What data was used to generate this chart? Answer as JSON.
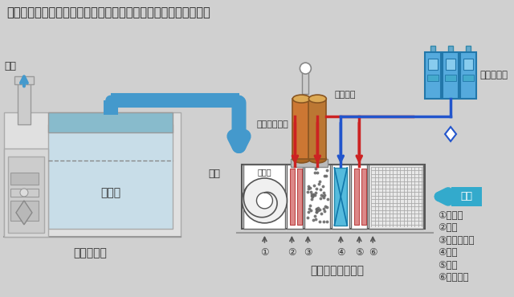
{
  "bg_color": "#d0d0d0",
  "title": "加熱・加湿にはボイラー等による蒸気他が用いられてきました。",
  "title_fontsize": 10.5,
  "title_color": "#222222",
  "label_booth": "塗装ブース",
  "label_booth_room": "塗装室",
  "label_air_conditioner": "空調機（外調機）",
  "label_exhaust": "排気",
  "label_supply": "給気",
  "label_outside_air": "外気",
  "label_steam_boiler": "蒸気ボイラー",
  "label_steam_pipe": "蒸気配管",
  "label_chiller": "冷水チラー",
  "label_fan": "送風機",
  "legend_items": [
    "①送風機",
    "②再熱",
    "③蒸気加湿器",
    "④冷却",
    "⑤予熱",
    "⑥フィルタ"
  ],
  "numbered_labels": [
    "①",
    "②",
    "③",
    "④",
    "⑤",
    "⑥"
  ],
  "red_color": "#cc2222",
  "blue_color": "#2255cc",
  "light_blue": "#4499cc",
  "light_blue2": "#88bbdd",
  "light_blue3": "#aaccdd",
  "cyan_color": "#44aacc",
  "orange_color": "#cc7733",
  "gray_color": "#888888",
  "dark_gray": "#333333",
  "white": "#ffffff",
  "pink_color": "#dd8888",
  "booth_fill": "#c8dde8",
  "booth_top_fill": "#88bbcc"
}
